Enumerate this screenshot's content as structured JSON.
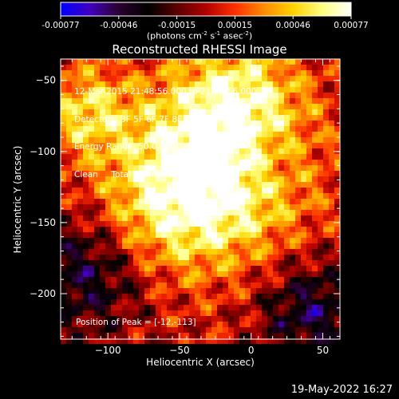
{
  "colorbar": {
    "ticks": [
      "-0.00077",
      "-0.00046",
      "-0.00015",
      "0.00015",
      "0.00046",
      "0.00077"
    ],
    "units_prefix": "(photons cm",
    "units_sup1": "-2",
    "units_mid": " s",
    "units_sup2": "-1",
    "units_mid2": " asec",
    "units_sup3": "-2",
    "units_suffix": ")",
    "stops": [
      "#0000ff",
      "#4000c0",
      "#2a0030",
      "#000000",
      "#5a0000",
      "#b00000",
      "#ff3000",
      "#ff8c00",
      "#ffd200",
      "#ffff80",
      "#ffffff"
    ]
  },
  "chart_data": {
    "type": "heatmap",
    "title": "Reconstructed RHESSI Image",
    "xlabel": "Heliocentric X (arcsec)",
    "ylabel": "Heliocentric Y (arcsec)",
    "xlim": [
      -133,
      62
    ],
    "ylim": [
      -232,
      -35
    ],
    "x_ticks": [
      -100,
      -50,
      0,
      50
    ],
    "y_ticks": [
      -50,
      -100,
      -150,
      -200
    ],
    "peak": [
      -12,
      -113
    ],
    "annotations": [
      "12-Mar-2015 21:48:56.000 to 21:52:56.000",
      "Detectors: 3F 5F 6F 7F 8F 9F, Att 3",
      "Energy Range: 50.0 - 100.0 keV",
      "Clean     Total counts: 1.71E+04"
    ],
    "peak_label": "Position of Peak = [-12,-113]"
  },
  "footer": {
    "date": "19-May-2022 16:27"
  }
}
